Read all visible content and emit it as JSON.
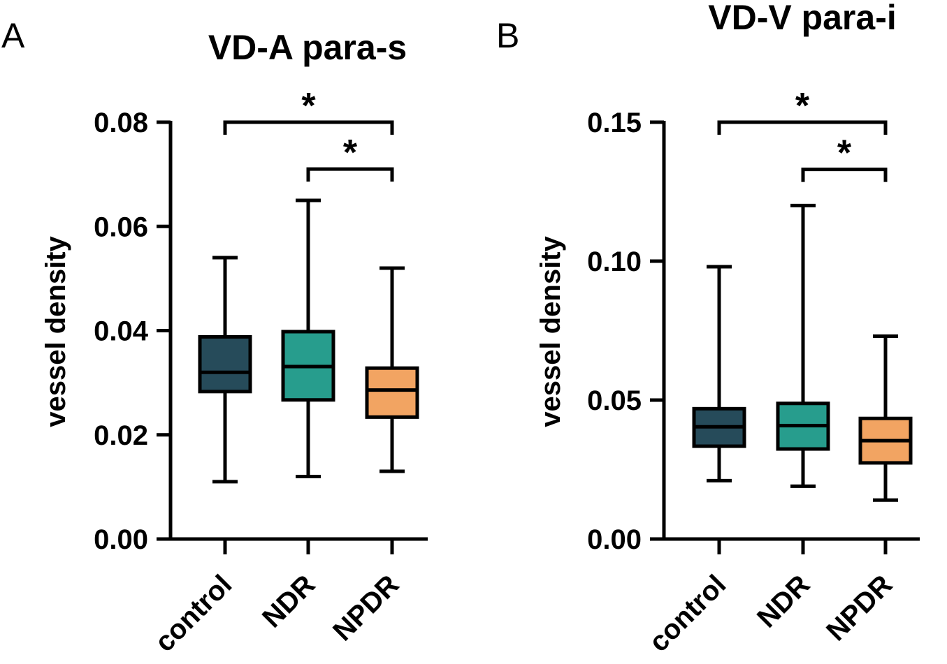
{
  "panels": [
    {
      "letter": "A",
      "chart_data": {
        "type": "box",
        "title": "VD-A para-s",
        "ylabel": "vessel density",
        "xlabel": "",
        "categories": [
          "control",
          "NDR",
          "NPDR"
        ],
        "ylim": [
          0,
          0.08
        ],
        "yticks": [
          0.0,
          0.02,
          0.04,
          0.06,
          0.08
        ],
        "ytick_labels": [
          "0.00",
          "0.02",
          "0.04",
          "0.06",
          "0.08"
        ],
        "boxes": [
          {
            "category": "control",
            "min": 0.011,
            "q1": 0.0283,
            "median": 0.032,
            "q3": 0.0388,
            "max": 0.054
          },
          {
            "category": "NDR",
            "min": 0.012,
            "q1": 0.0267,
            "median": 0.0331,
            "q3": 0.0398,
            "max": 0.065
          },
          {
            "category": "NPDR",
            "min": 0.013,
            "q1": 0.0234,
            "median": 0.0286,
            "q3": 0.0328,
            "max": 0.052
          }
        ],
        "significance": [
          {
            "from": "control",
            "to": "NPDR",
            "label": "*",
            "level": 0.08
          },
          {
            "from": "NDR",
            "to": "NPDR",
            "label": "*",
            "level": 0.071
          }
        ]
      }
    },
    {
      "letter": "B",
      "chart_data": {
        "type": "box",
        "title": "VD-V para-i",
        "ylabel": "vessel density",
        "xlabel": "",
        "categories": [
          "control",
          "NDR",
          "NPDR"
        ],
        "ylim": [
          0,
          0.15
        ],
        "yticks": [
          0.0,
          0.05,
          0.1,
          0.15
        ],
        "ytick_labels": [
          "0.00",
          "0.05",
          "0.10",
          "0.15"
        ],
        "boxes": [
          {
            "category": "control",
            "min": 0.021,
            "q1": 0.0334,
            "median": 0.0404,
            "q3": 0.0469,
            "max": 0.098
          },
          {
            "category": "NDR",
            "min": 0.019,
            "q1": 0.0324,
            "median": 0.0408,
            "q3": 0.0488,
            "max": 0.12
          },
          {
            "category": "NPDR",
            "min": 0.014,
            "q1": 0.0274,
            "median": 0.0354,
            "q3": 0.0434,
            "max": 0.073
          }
        ],
        "significance": [
          {
            "from": "control",
            "to": "NPDR",
            "label": "*",
            "level": 0.15
          },
          {
            "from": "NDR",
            "to": "NPDR",
            "label": "*",
            "level": 0.133
          }
        ]
      }
    }
  ],
  "colors": {
    "control": "#264b5a",
    "NDR": "#279d8d",
    "NPDR": "#f2a462",
    "ink": "#000000"
  }
}
